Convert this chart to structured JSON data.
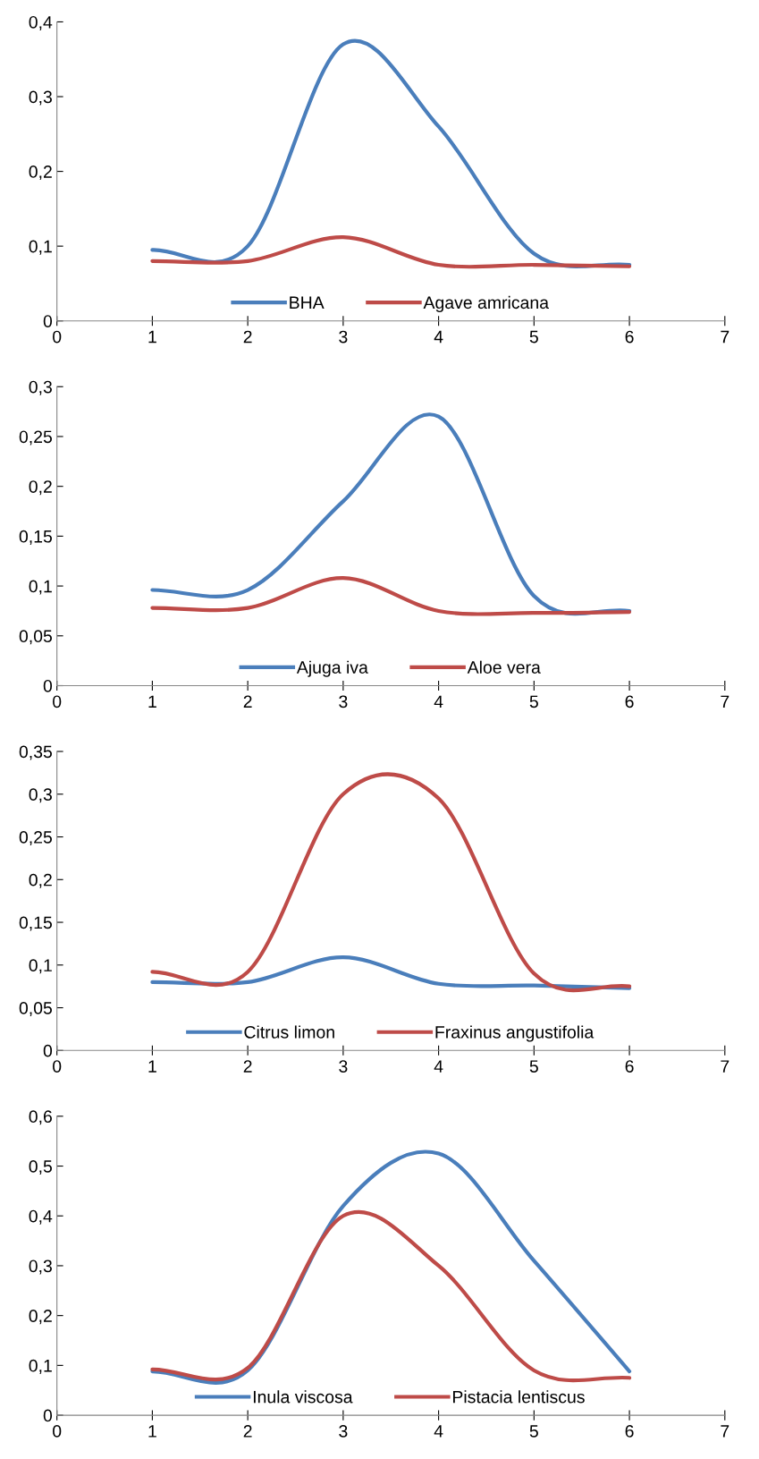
{
  "chart_data": [
    {
      "type": "line",
      "x": [
        1,
        2,
        3,
        4,
        5,
        6
      ],
      "xlim": [
        0,
        7
      ],
      "xticks": [
        0,
        1,
        2,
        3,
        4,
        5,
        6,
        7
      ],
      "ylim": [
        0,
        0.4
      ],
      "yticks": [
        {
          "value": 0,
          "label": "0"
        },
        {
          "value": 0.1,
          "label": "0,1"
        },
        {
          "value": 0.2,
          "label": "0,2"
        },
        {
          "value": 0.3,
          "label": "0,3"
        },
        {
          "value": 0.4,
          "label": "0,4"
        }
      ],
      "legend": "bottom",
      "grid": false,
      "marker": "none",
      "line_style": "solid",
      "series": [
        {
          "name": "BHA",
          "color": "#4a7ebb",
          "values": [
            0.095,
            0.1,
            0.37,
            0.26,
            0.09,
            0.075
          ]
        },
        {
          "name": "Agave amricana",
          "color": "#be4b48",
          "values": [
            0.08,
            0.08,
            0.112,
            0.075,
            0.075,
            0.073
          ]
        }
      ]
    },
    {
      "type": "line",
      "x": [
        1,
        2,
        3,
        4,
        5,
        6
      ],
      "xlim": [
        0,
        7
      ],
      "xticks": [
        0,
        1,
        2,
        3,
        4,
        5,
        6,
        7
      ],
      "ylim": [
        0,
        0.3
      ],
      "yticks": [
        {
          "value": 0,
          "label": "0"
        },
        {
          "value": 0.05,
          "label": "0,05"
        },
        {
          "value": 0.1,
          "label": "0,1"
        },
        {
          "value": 0.15,
          "label": "0,15"
        },
        {
          "value": 0.2,
          "label": "0,2"
        },
        {
          "value": 0.25,
          "label": "0,25"
        },
        {
          "value": 0.3,
          "label": "0,3"
        }
      ],
      "legend": "bottom",
      "grid": false,
      "marker": "none",
      "line_style": "solid",
      "series": [
        {
          "name": "Ajuga iva",
          "color": "#4a7ebb",
          "values": [
            0.096,
            0.096,
            0.185,
            0.27,
            0.09,
            0.075
          ]
        },
        {
          "name": "Aloe vera",
          "color": "#be4b48",
          "values": [
            0.078,
            0.078,
            0.108,
            0.075,
            0.073,
            0.074
          ]
        }
      ]
    },
    {
      "type": "line",
      "x": [
        1,
        2,
        3,
        4,
        5,
        6
      ],
      "xlim": [
        0,
        7
      ],
      "xticks": [
        0,
        1,
        2,
        3,
        4,
        5,
        6,
        7
      ],
      "ylim": [
        0,
        0.35
      ],
      "yticks": [
        {
          "value": 0,
          "label": "0"
        },
        {
          "value": 0.05,
          "label": "0,05"
        },
        {
          "value": 0.1,
          "label": "0,1"
        },
        {
          "value": 0.15,
          "label": "0,15"
        },
        {
          "value": 0.2,
          "label": "0,2"
        },
        {
          "value": 0.25,
          "label": "0,25"
        },
        {
          "value": 0.3,
          "label": "0,3"
        },
        {
          "value": 0.35,
          "label": "0,35"
        }
      ],
      "legend": "bottom",
      "grid": false,
      "marker": "none",
      "line_style": "solid",
      "series": [
        {
          "name": "Citrus limon",
          "color": "#4a7ebb",
          "values": [
            0.08,
            0.08,
            0.109,
            0.078,
            0.076,
            0.073
          ]
        },
        {
          "name": "Fraxinus angustifolia",
          "color": "#be4b48",
          "values": [
            0.092,
            0.092,
            0.3,
            0.295,
            0.09,
            0.075
          ]
        }
      ]
    },
    {
      "type": "line",
      "x": [
        1,
        2,
        3,
        4,
        5,
        6
      ],
      "xlim": [
        0,
        7
      ],
      "xticks": [
        0,
        1,
        2,
        3,
        4,
        5,
        6,
        7
      ],
      "ylim": [
        0,
        0.6
      ],
      "yticks": [
        {
          "value": 0,
          "label": "0"
        },
        {
          "value": 0.1,
          "label": "0,1"
        },
        {
          "value": 0.2,
          "label": "0,2"
        },
        {
          "value": 0.3,
          "label": "0,3"
        },
        {
          "value": 0.4,
          "label": "0,4"
        },
        {
          "value": 0.5,
          "label": "0,5"
        },
        {
          "value": 0.6,
          "label": "0,6"
        }
      ],
      "legend": "bottom",
      "grid": false,
      "marker": "none",
      "line_style": "solid",
      "series": [
        {
          "name": "Inula viscosa",
          "color": "#4a7ebb",
          "values": [
            0.088,
            0.09,
            0.42,
            0.525,
            0.31,
            0.088
          ]
        },
        {
          "name": "Pistacia lentiscus",
          "color": "#be4b48",
          "values": [
            0.092,
            0.095,
            0.4,
            0.3,
            0.09,
            0.075
          ]
        }
      ]
    }
  ]
}
